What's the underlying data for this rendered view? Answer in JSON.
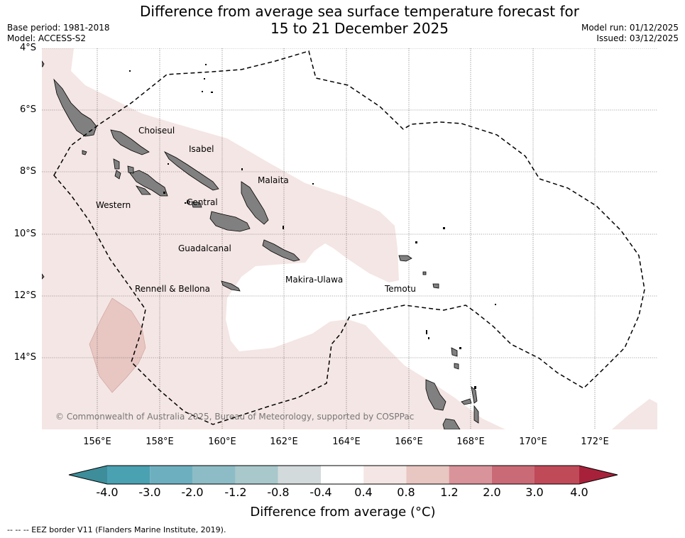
{
  "title": {
    "line1": "Difference from average sea surface temperature forecast for",
    "line2": "15 to 21 December 2025"
  },
  "meta": {
    "base_period": "Base period: 1981-2018",
    "model": "Model: ACCESS-S2",
    "model_run": "Model run: 01/12/2025",
    "issued": "Issued: 03/12/2025"
  },
  "axes": {
    "lat_labels": [
      "4°S",
      "6°S",
      "8°S",
      "10°S",
      "12°S",
      "14°S"
    ],
    "lon_labels": [
      "156°E",
      "158°E",
      "160°E",
      "162°E",
      "164°E",
      "166°E",
      "168°E",
      "170°E",
      "172°E"
    ]
  },
  "provinces": [
    "Choiseul",
    "Isabel",
    "Malaita",
    "Western",
    "Central",
    "Guadalcanal",
    "Makira-Ulawa",
    "Rennell & Bellona",
    "Temotu"
  ],
  "copyright": "© Commonwealth of Australia 2025, Bureau of Meteorology, supported by COSPPac",
  "colorbar": {
    "ticks": [
      "-4.0",
      "-3.0",
      "-2.0",
      "-1.2",
      "-0.8",
      "-0.4",
      "0.4",
      "0.8",
      "1.2",
      "2.0",
      "3.0",
      "4.0"
    ],
    "colors": {
      "neg_extend": "#3d8d9a",
      "neg_4_3": "#4aa1b2",
      "neg_3_2": "#6eafbf",
      "neg_2_1_2": "#8dbcc6",
      "neg_1_2_0_8": "#a9c8cc",
      "neg_0_8_0_4": "#d3dadb",
      "neutral": "#ffffff",
      "pos_0_4_0_8": "#f4e6e4",
      "pos_0_8_1_2": "#e8c6c2",
      "pos_1_2_2_0": "#d9939a",
      "pos_2_0_3_0": "#ca6a76",
      "pos_3_0_4_0": "#c04a58",
      "pos_extend": "#a8213a"
    },
    "label": "Difference from average (°C)"
  },
  "legend": {
    "eez": "--  --  -- EEZ border V11 (Flanders Marine Institute, 2019)."
  }
}
